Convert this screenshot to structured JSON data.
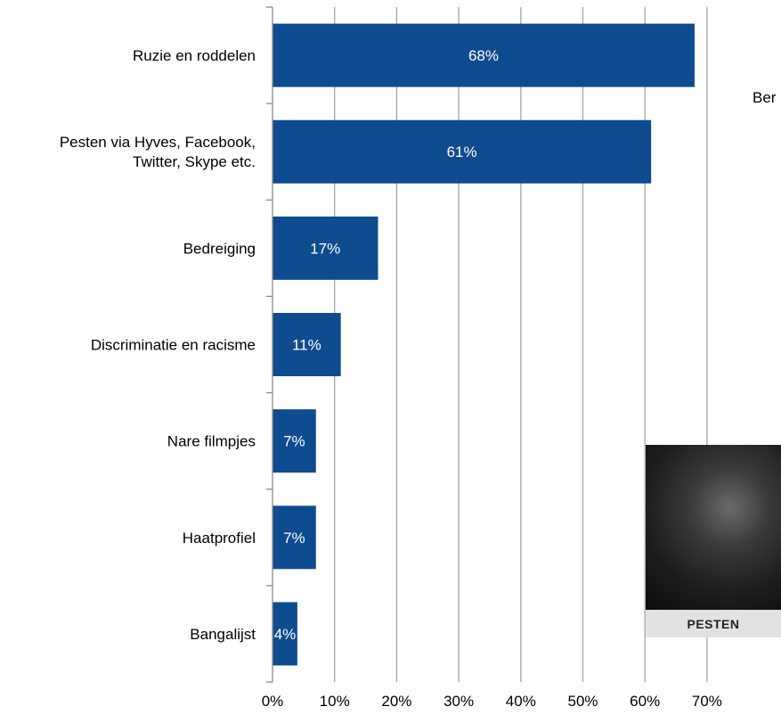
{
  "chart_data": {
    "type": "bar",
    "orientation": "horizontal",
    "categories": [
      "Ruzie en roddelen",
      "Pesten via Hyves, Facebook, Twitter, Skype etc.",
      "Bedreiging",
      "Discriminatie en racisme",
      "Nare filmpjes",
      "Haatprofiel",
      "Bangalijst"
    ],
    "category_lines": [
      [
        "Ruzie en roddelen"
      ],
      [
        "Pesten via Hyves, Facebook,",
        "Twitter, Skype etc."
      ],
      [
        "Bedreiging"
      ],
      [
        "Discriminatie en racisme"
      ],
      [
        "Nare filmpjes"
      ],
      [
        "Haatprofiel"
      ],
      [
        "Bangalijst"
      ]
    ],
    "values": [
      68,
      61,
      17,
      11,
      7,
      7,
      4
    ],
    "data_labels": [
      "68%",
      "61%",
      "17%",
      "11%",
      "7%",
      "7%",
      "4%"
    ],
    "x_ticks": [
      0,
      10,
      20,
      30,
      40,
      50,
      60,
      70
    ],
    "x_tick_labels": [
      "0%",
      "10%",
      "20%",
      "30%",
      "40%",
      "50%",
      "60%",
      "70%"
    ],
    "xlim": [
      0,
      70
    ],
    "grid": true,
    "bar_color": "#0e4c8f",
    "grid_color": "#a6a6a6"
  },
  "side_note": "Ber",
  "photo": {
    "caption": "PESTEN"
  }
}
